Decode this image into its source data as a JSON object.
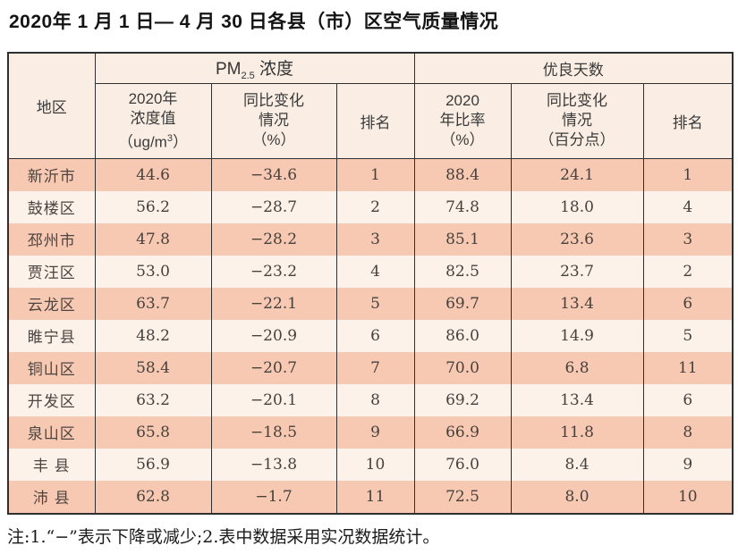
{
  "title": "2020年 1 月 1 日— 4 月 30 日各县（市）区空气质量情况",
  "footnote": "注:1.“−”表示下降或减少;2.表中数据采用实况数据统计。",
  "colors": {
    "row_odd": "#f8c9b2",
    "row_even": "#fdf2ea",
    "header_bg": "#faeee4",
    "border": "#2f2f2f"
  },
  "chart_data": {
    "type": "table",
    "title": "2020年1月1日—4月30日各县（市）区空气质量情况",
    "col_groups": [
      "PM2.5浓度",
      "优良天数"
    ],
    "columns": [
      "地区",
      "2020年浓度值（ug/m3）",
      "同比变化情况（%）",
      "排名",
      "2020年比率（%）",
      "同比变化情况（百分点）",
      "排名"
    ],
    "header": {
      "region": "地区",
      "pm_prefix": "PM",
      "pm_sub": "2.5",
      "pm_suffix": " 浓度",
      "good_group": "优良天数",
      "pm_value_l1": "2020年",
      "pm_value_l2": "浓度值",
      "pm_value_l3a": "（ug/m",
      "pm_value_sup": "3",
      "pm_value_l3b": "）",
      "pm_change_l1": "同比变化",
      "pm_change_l2": "情况",
      "pm_change_l3": "（%）",
      "pm_rank": "排名",
      "ratio_l1": "2020",
      "ratio_l2": "年比率",
      "ratio_l3": "（%）",
      "ratio_change_l1": "同比变化",
      "ratio_change_l2": "情况",
      "ratio_change_l3": "（百分点）",
      "good_rank": "排名"
    },
    "rows": [
      [
        "新沂市",
        "44.6",
        "−34.6",
        "1",
        "88.4",
        "24.1",
        "1"
      ],
      [
        "鼓楼区",
        "56.2",
        "−28.7",
        "2",
        "74.8",
        "18.0",
        "4"
      ],
      [
        "邳州市",
        "47.8",
        "−28.2",
        "3",
        "85.1",
        "23.6",
        "3"
      ],
      [
        "贾汪区",
        "53.0",
        "−23.2",
        "4",
        "82.5",
        "23.7",
        "2"
      ],
      [
        "云龙区",
        "63.7",
        "−22.1",
        "5",
        "69.7",
        "13.4",
        "6"
      ],
      [
        "睢宁县",
        "48.2",
        "−20.9",
        "6",
        "86.0",
        "14.9",
        "5"
      ],
      [
        "铜山区",
        "58.4",
        "−20.7",
        "7",
        "70.0",
        "6.8",
        "11"
      ],
      [
        "开发区",
        "63.2",
        "−20.1",
        "8",
        "69.2",
        "13.4",
        "6"
      ],
      [
        "泉山区",
        "65.8",
        "−18.5",
        "9",
        "66.9",
        "11.8",
        "8"
      ],
      [
        "丰 县",
        "56.9",
        "−13.8",
        "10",
        "76.0",
        "8.4",
        "9"
      ],
      [
        "沛 县",
        "62.8",
        "−1.7",
        "11",
        "72.5",
        "8.0",
        "10"
      ]
    ]
  }
}
